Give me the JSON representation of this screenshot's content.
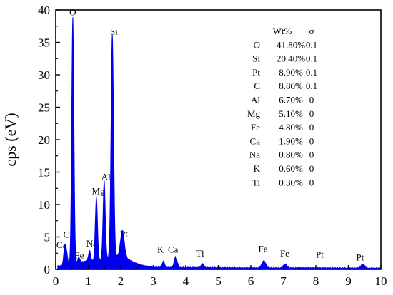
{
  "chart_data": {
    "type": "line",
    "title": "",
    "xlabel": "",
    "ylabel": "cps (eV)",
    "xlim": [
      0,
      10
    ],
    "ylim": [
      0,
      40
    ],
    "x_ticks": [
      "0",
      "1",
      "2",
      "3",
      "4",
      "5",
      "6",
      "7",
      "8",
      "9",
      "10"
    ],
    "y_ticks": [
      "0",
      "5",
      "10",
      "15",
      "20",
      "25",
      "30",
      "35",
      "40"
    ],
    "grid": false,
    "line_color": "#0000ee",
    "fill": true,
    "baseline": 0.3,
    "peaks": [
      {
        "label": "C",
        "x": 0.28,
        "y": 3.0,
        "width": 0.035
      },
      {
        "label": "Ca",
        "x": 0.34,
        "y": 1.5,
        "width": 0.03
      },
      {
        "label": "O",
        "x": 0.525,
        "y": 38.0,
        "width": 0.035
      },
      {
        "label": "Fe",
        "x": 0.71,
        "y": 0.8,
        "width": 0.03
      },
      {
        "label": "Na",
        "x": 1.04,
        "y": 1.6,
        "width": 0.035
      },
      {
        "label": "Mg",
        "x": 1.25,
        "y": 9.8,
        "width": 0.035
      },
      {
        "label": "Al",
        "x": 1.49,
        "y": 12.1,
        "width": 0.035
      },
      {
        "label": "Si",
        "x": 1.74,
        "y": 34.3,
        "width": 0.04
      },
      {
        "label": "Pt",
        "x": 2.05,
        "y": 4.1,
        "width": 0.06
      },
      {
        "label": "K",
        "x": 3.31,
        "y": 0.9,
        "width": 0.04
      },
      {
        "label": "Ca",
        "x": 3.69,
        "y": 1.7,
        "width": 0.045
      },
      {
        "label": "Ti",
        "x": 4.51,
        "y": 0.6,
        "width": 0.04
      },
      {
        "label": "Fe",
        "x": 6.4,
        "y": 1.1,
        "width": 0.06
      },
      {
        "label": "Fe",
        "x": 7.06,
        "y": 0.6,
        "width": 0.05
      },
      {
        "label": "Pt",
        "x": 9.44,
        "y": 0.6,
        "width": 0.06
      }
    ],
    "annotations": [
      {
        "text": "O",
        "x": 0.42,
        "y": 39.2
      },
      {
        "text": "Si",
        "x": 1.67,
        "y": 36.2
      },
      {
        "text": "Al",
        "x": 1.4,
        "y": 13.8
      },
      {
        "text": "Mg",
        "x": 1.11,
        "y": 11.6
      },
      {
        "text": "Na",
        "x": 0.94,
        "y": 3.5
      },
      {
        "text": "C",
        "x": 0.23,
        "y": 4.9
      },
      {
        "text": "Ca",
        "x": 0.02,
        "y": 3.3
      },
      {
        "text": "Fe",
        "x": 0.58,
        "y": 1.7
      },
      {
        "text": "Pt",
        "x": 1.98,
        "y": 5.0
      },
      {
        "text": "K",
        "x": 3.12,
        "y": 2.6
      },
      {
        "text": "Ca",
        "x": 3.45,
        "y": 2.6
      },
      {
        "text": "Ti",
        "x": 4.32,
        "y": 2.0
      },
      {
        "text": "Fe",
        "x": 6.23,
        "y": 2.7
      },
      {
        "text": "Fe",
        "x": 6.9,
        "y": 2.0
      },
      {
        "text": "Pt",
        "x": 8.0,
        "y": 1.8
      },
      {
        "text": "Pt",
        "x": 9.24,
        "y": 1.4
      }
    ],
    "table": {
      "headers": [
        "",
        "Wt%",
        "σ"
      ],
      "rows": [
        {
          "element": "O",
          "wt": "41.80%",
          "sigma": "0.1"
        },
        {
          "element": "Si",
          "wt": "20.40%",
          "sigma": "0.1"
        },
        {
          "element": "Pt",
          "wt": "8.90%",
          "sigma": "0.1"
        },
        {
          "element": "C",
          "wt": "8.80%",
          "sigma": "0.1"
        },
        {
          "element": "Al",
          "wt": "6.70%",
          "sigma": "0"
        },
        {
          "element": "Mg",
          "wt": "5.10%",
          "sigma": "0"
        },
        {
          "element": "Fe",
          "wt": "4.80%",
          "sigma": "0"
        },
        {
          "element": "Ca",
          "wt": "1.90%",
          "sigma": "0"
        },
        {
          "element": "Na",
          "wt": "0.80%",
          "sigma": "0"
        },
        {
          "element": "K",
          "wt": "0.60%",
          "sigma": "0"
        },
        {
          "element": "Ti",
          "wt": "0.30%",
          "sigma": "0"
        }
      ]
    }
  }
}
